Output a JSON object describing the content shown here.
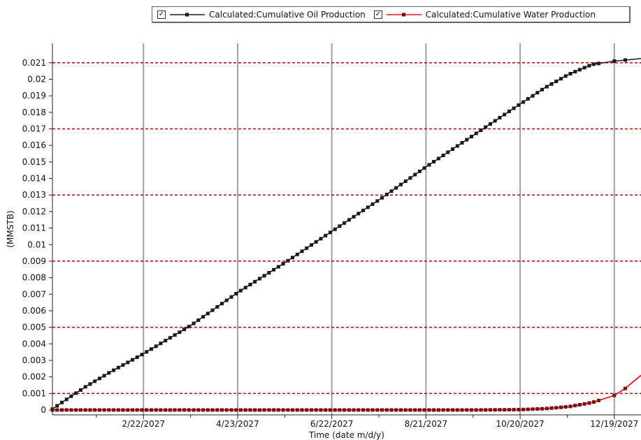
{
  "chart_data": {
    "type": "line",
    "title": "",
    "xlabel": "Time (date m/d/y)",
    "ylabel": "(MMSTB)",
    "x_range": [
      "2026-12-26",
      "2028-01-05"
    ],
    "ylim": [
      0,
      0.0215
    ],
    "yticks": [
      0,
      0.001,
      0.002,
      0.003,
      0.004,
      0.005,
      0.006,
      0.007,
      0.008,
      0.009,
      0.01,
      0.011,
      0.012,
      0.013,
      0.014,
      0.015,
      0.016,
      0.017,
      0.018,
      0.019,
      0.02,
      0.021
    ],
    "ytick_labels": [
      "0",
      "0.001",
      "0.002",
      "0.003",
      "0.004",
      "0.005",
      "0.006",
      "0.007",
      "0.008",
      "0.009",
      "0.01",
      "0.011",
      "0.012",
      "0.013",
      "0.014",
      "0.015",
      "0.016",
      "0.017",
      "0.018",
      "0.019",
      "0.02",
      "0.021"
    ],
    "xticks": [
      "2027-02-22",
      "2027-04-23",
      "2027-06-22",
      "2027-08-21",
      "2027-10-20",
      "2027-12-19"
    ],
    "xtick_labels": [
      "2/22/2027",
      "4/23/2027",
      "6/22/2027",
      "8/21/2027",
      "10/20/2027",
      "12/19/2027"
    ],
    "grid": {
      "vertical": "solid gray at each x tick",
      "horizontal": "dashed red at 0.001, 0.005, 0.009, 0.013, 0.017, 0.021"
    },
    "grid_lines_y": [
      0.001,
      0.005,
      0.009,
      0.013,
      0.017,
      0.021
    ],
    "legend_position": "top-right",
    "series": [
      {
        "name": "Calculated:Cumulative Oil Production",
        "color": "#1a1a1a",
        "marker": "square",
        "x": [
          "2026-12-26",
          "2027-01-01",
          "2027-01-16",
          "2027-02-01",
          "2027-02-22",
          "2027-03-24",
          "2027-04-23",
          "2027-05-23",
          "2027-06-22",
          "2027-07-22",
          "2027-08-21",
          "2027-09-20",
          "2027-10-20",
          "2027-11-05",
          "2027-11-20",
          "2027-12-05",
          "2027-12-19",
          "2028-01-05"
        ],
        "y": [
          5e-05,
          0.00045,
          0.0014,
          0.0023,
          0.0034,
          0.0051,
          0.0071,
          0.0089,
          0.0108,
          0.0127,
          0.0147,
          0.0166,
          0.0185,
          0.0195,
          0.0203,
          0.0209,
          0.0211,
          0.02125
        ]
      },
      {
        "name": "Calculated:Cumulative Water Production",
        "color": "#e8141e",
        "marker": "square",
        "x": [
          "2026-12-26",
          "2027-02-22",
          "2027-04-23",
          "2027-06-22",
          "2027-08-21",
          "2027-09-20",
          "2027-10-20",
          "2027-11-05",
          "2027-11-20",
          "2027-12-05",
          "2027-12-19",
          "2027-12-26",
          "2028-01-05"
        ],
        "y": [
          0,
          0,
          0,
          0,
          0,
          0,
          2e-05,
          8e-05,
          0.0002,
          0.00045,
          0.00088,
          0.0013,
          0.0021
        ]
      }
    ]
  }
}
